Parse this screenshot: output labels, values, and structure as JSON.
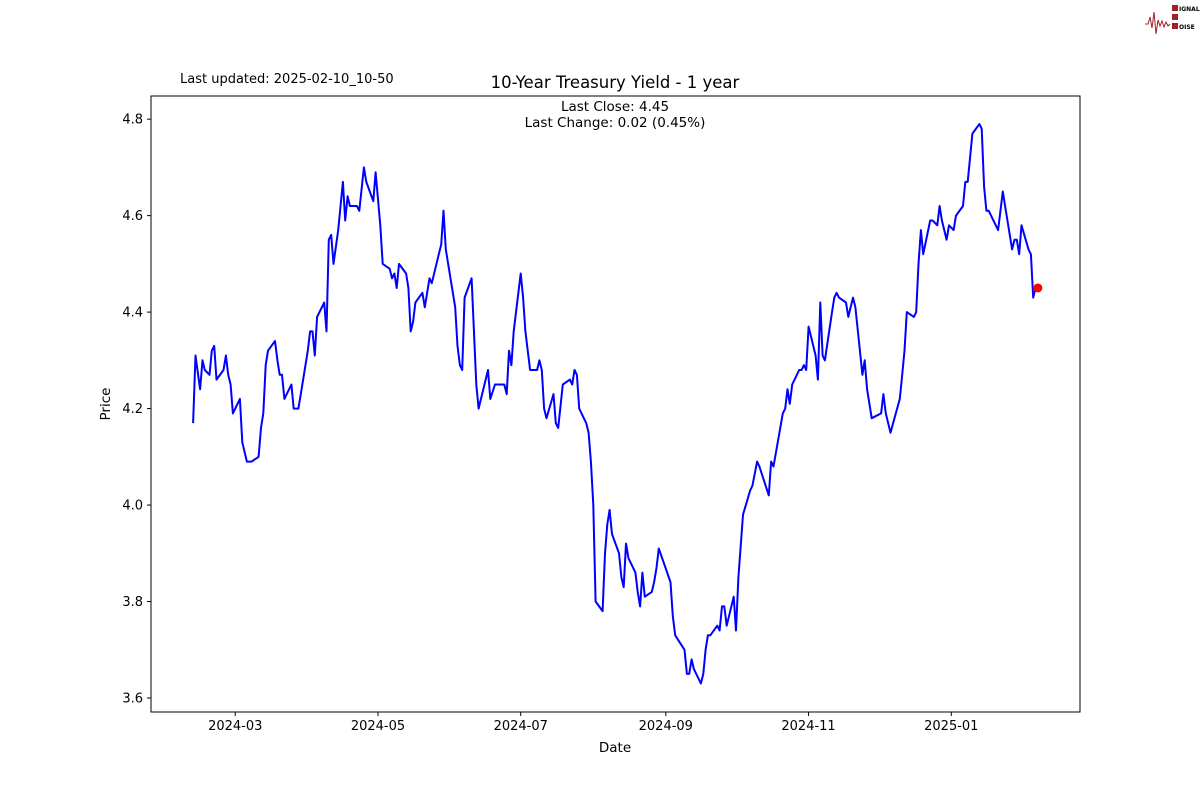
{
  "header": {
    "last_updated": "Last updated: 2025-02-10_10-50",
    "logo_text": [
      "SIGNAL",
      "2",
      "NOISE"
    ]
  },
  "chart_data": {
    "type": "line",
    "title": "10-Year Treasury Yield - 1 year",
    "annotations": [
      "Last Close: 4.45",
      "Last Change: 0.02 (0.45%)"
    ],
    "xlabel": "Date",
    "ylabel": "Price",
    "xlim": [
      "2024-01-25",
      "2025-02-25"
    ],
    "ylim": [
      3.571,
      4.848
    ],
    "x_ticks": [
      {
        "date": "2024-03-01",
        "label": "2024-03"
      },
      {
        "date": "2024-05-01",
        "label": "2024-05"
      },
      {
        "date": "2024-07-01",
        "label": "2024-07"
      },
      {
        "date": "2024-09-01",
        "label": "2024-09"
      },
      {
        "date": "2024-11-01",
        "label": "2024-11"
      },
      {
        "date": "2025-01-01",
        "label": "2025-01"
      }
    ],
    "y_ticks": [
      {
        "value": 3.6,
        "label": "3.6"
      },
      {
        "value": 3.8,
        "label": "3.8"
      },
      {
        "value": 4.0,
        "label": "4.0"
      },
      {
        "value": 4.2,
        "label": "4.2"
      },
      {
        "value": 4.4,
        "label": "4.4"
      },
      {
        "value": 4.6,
        "label": "4.6"
      },
      {
        "value": 4.8,
        "label": "4.8"
      }
    ],
    "grid": false,
    "line_color": "#0000ff",
    "last_point_color": "#ff0000",
    "last_point": {
      "date": "2025-02-07",
      "value": 4.45
    },
    "series": [
      {
        "points": [
          [
            "2024-02-12",
            4.17
          ],
          [
            "2024-02-13",
            4.31
          ],
          [
            "2024-02-15",
            4.24
          ],
          [
            "2024-02-16",
            4.3
          ],
          [
            "2024-02-17",
            4.28
          ],
          [
            "2024-02-19",
            4.27
          ],
          [
            "2024-02-20",
            4.32
          ],
          [
            "2024-02-21",
            4.33
          ],
          [
            "2024-02-22",
            4.26
          ],
          [
            "2024-02-25",
            4.28
          ],
          [
            "2024-02-26",
            4.31
          ],
          [
            "2024-02-27",
            4.27
          ],
          [
            "2024-02-28",
            4.25
          ],
          [
            "2024-02-29",
            4.19
          ],
          [
            "2024-03-03",
            4.22
          ],
          [
            "2024-03-04",
            4.13
          ],
          [
            "2024-03-06",
            4.09
          ],
          [
            "2024-03-08",
            4.09
          ],
          [
            "2024-03-11",
            4.1
          ],
          [
            "2024-03-12",
            4.16
          ],
          [
            "2024-03-13",
            4.19
          ],
          [
            "2024-03-14",
            4.29
          ],
          [
            "2024-03-15",
            4.32
          ],
          [
            "2024-03-18",
            4.34
          ],
          [
            "2024-03-19",
            4.3
          ],
          [
            "2024-03-20",
            4.27
          ],
          [
            "2024-03-21",
            4.27
          ],
          [
            "2024-03-22",
            4.22
          ],
          [
            "2024-03-25",
            4.25
          ],
          [
            "2024-03-26",
            4.2
          ],
          [
            "2024-03-28",
            4.2
          ],
          [
            "2024-03-29",
            4.23
          ],
          [
            "2024-04-01",
            4.32
          ],
          [
            "2024-04-02",
            4.36
          ],
          [
            "2024-04-03",
            4.36
          ],
          [
            "2024-04-04",
            4.31
          ],
          [
            "2024-04-05",
            4.39
          ],
          [
            "2024-04-08",
            4.42
          ],
          [
            "2024-04-09",
            4.36
          ],
          [
            "2024-04-10",
            4.55
          ],
          [
            "2024-04-11",
            4.56
          ],
          [
            "2024-04-12",
            4.5
          ],
          [
            "2024-04-14",
            4.57
          ],
          [
            "2024-04-16",
            4.67
          ],
          [
            "2024-04-17",
            4.59
          ],
          [
            "2024-04-18",
            4.64
          ],
          [
            "2024-04-19",
            4.62
          ],
          [
            "2024-04-22",
            4.62
          ],
          [
            "2024-04-23",
            4.61
          ],
          [
            "2024-04-25",
            4.7
          ],
          [
            "2024-04-26",
            4.67
          ],
          [
            "2024-04-29",
            4.63
          ],
          [
            "2024-04-30",
            4.69
          ],
          [
            "2024-05-02",
            4.58
          ],
          [
            "2024-05-03",
            4.5
          ],
          [
            "2024-05-06",
            4.49
          ],
          [
            "2024-05-07",
            4.47
          ],
          [
            "2024-05-08",
            4.48
          ],
          [
            "2024-05-09",
            4.45
          ],
          [
            "2024-05-10",
            4.5
          ],
          [
            "2024-05-13",
            4.48
          ],
          [
            "2024-05-14",
            4.45
          ],
          [
            "2024-05-15",
            4.36
          ],
          [
            "2024-05-16",
            4.38
          ],
          [
            "2024-05-17",
            4.42
          ],
          [
            "2024-05-20",
            4.44
          ],
          [
            "2024-05-21",
            4.41
          ],
          [
            "2024-05-23",
            4.47
          ],
          [
            "2024-05-24",
            4.46
          ],
          [
            "2024-05-27",
            4.52
          ],
          [
            "2024-05-28",
            4.54
          ],
          [
            "2024-05-29",
            4.61
          ],
          [
            "2024-05-30",
            4.53
          ],
          [
            "2024-06-03",
            4.41
          ],
          [
            "2024-06-04",
            4.33
          ],
          [
            "2024-06-05",
            4.29
          ],
          [
            "2024-06-06",
            4.28
          ],
          [
            "2024-06-07",
            4.43
          ],
          [
            "2024-06-10",
            4.47
          ],
          [
            "2024-06-12",
            4.25
          ],
          [
            "2024-06-13",
            4.2
          ],
          [
            "2024-06-17",
            4.28
          ],
          [
            "2024-06-18",
            4.22
          ],
          [
            "2024-06-20",
            4.25
          ],
          [
            "2024-06-24",
            4.25
          ],
          [
            "2024-06-25",
            4.23
          ],
          [
            "2024-06-26",
            4.32
          ],
          [
            "2024-06-27",
            4.29
          ],
          [
            "2024-06-28",
            4.36
          ],
          [
            "2024-07-01",
            4.48
          ],
          [
            "2024-07-02",
            4.43
          ],
          [
            "2024-07-03",
            4.36
          ],
          [
            "2024-07-05",
            4.28
          ],
          [
            "2024-07-08",
            4.28
          ],
          [
            "2024-07-09",
            4.3
          ],
          [
            "2024-07-10",
            4.28
          ],
          [
            "2024-07-11",
            4.2
          ],
          [
            "2024-07-12",
            4.18
          ],
          [
            "2024-07-15",
            4.23
          ],
          [
            "2024-07-16",
            4.17
          ],
          [
            "2024-07-17",
            4.16
          ],
          [
            "2024-07-19",
            4.25
          ],
          [
            "2024-07-22",
            4.26
          ],
          [
            "2024-07-23",
            4.25
          ],
          [
            "2024-07-24",
            4.28
          ],
          [
            "2024-07-25",
            4.27
          ],
          [
            "2024-07-26",
            4.2
          ],
          [
            "2024-07-29",
            4.17
          ],
          [
            "2024-07-30",
            4.15
          ],
          [
            "2024-07-31",
            4.09
          ],
          [
            "2024-08-01",
            4.0
          ],
          [
            "2024-08-02",
            3.8
          ],
          [
            "2024-08-05",
            3.78
          ],
          [
            "2024-08-06",
            3.9
          ],
          [
            "2024-08-07",
            3.96
          ],
          [
            "2024-08-08",
            3.99
          ],
          [
            "2024-08-09",
            3.94
          ],
          [
            "2024-08-12",
            3.9
          ],
          [
            "2024-08-13",
            3.85
          ],
          [
            "2024-08-14",
            3.83
          ],
          [
            "2024-08-15",
            3.92
          ],
          [
            "2024-08-16",
            3.89
          ],
          [
            "2024-08-19",
            3.86
          ],
          [
            "2024-08-20",
            3.82
          ],
          [
            "2024-08-21",
            3.79
          ],
          [
            "2024-08-22",
            3.86
          ],
          [
            "2024-08-23",
            3.81
          ],
          [
            "2024-08-26",
            3.82
          ],
          [
            "2024-08-27",
            3.84
          ],
          [
            "2024-08-28",
            3.87
          ],
          [
            "2024-08-29",
            3.91
          ],
          [
            "2024-09-03",
            3.84
          ],
          [
            "2024-09-04",
            3.77
          ],
          [
            "2024-09-05",
            3.73
          ],
          [
            "2024-09-09",
            3.7
          ],
          [
            "2024-09-10",
            3.65
          ],
          [
            "2024-09-11",
            3.65
          ],
          [
            "2024-09-12",
            3.68
          ],
          [
            "2024-09-13",
            3.66
          ],
          [
            "2024-09-16",
            3.63
          ],
          [
            "2024-09-17",
            3.65
          ],
          [
            "2024-09-18",
            3.7
          ],
          [
            "2024-09-19",
            3.73
          ],
          [
            "2024-09-20",
            3.73
          ],
          [
            "2024-09-23",
            3.75
          ],
          [
            "2024-09-24",
            3.74
          ],
          [
            "2024-09-25",
            3.79
          ],
          [
            "2024-09-26",
            3.79
          ],
          [
            "2024-09-27",
            3.75
          ],
          [
            "2024-09-30",
            3.81
          ],
          [
            "2024-10-01",
            3.74
          ],
          [
            "2024-10-02",
            3.85
          ],
          [
            "2024-10-04",
            3.98
          ],
          [
            "2024-10-07",
            4.03
          ],
          [
            "2024-10-08",
            4.04
          ],
          [
            "2024-10-10",
            4.09
          ],
          [
            "2024-10-11",
            4.08
          ],
          [
            "2024-10-15",
            4.02
          ],
          [
            "2024-10-16",
            4.09
          ],
          [
            "2024-10-17",
            4.08
          ],
          [
            "2024-10-21",
            4.19
          ],
          [
            "2024-10-22",
            4.2
          ],
          [
            "2024-10-23",
            4.24
          ],
          [
            "2024-10-24",
            4.21
          ],
          [
            "2024-10-25",
            4.25
          ],
          [
            "2024-10-28",
            4.28
          ],
          [
            "2024-10-29",
            4.28
          ],
          [
            "2024-10-30",
            4.29
          ],
          [
            "2024-10-31",
            4.28
          ],
          [
            "2024-11-01",
            4.37
          ],
          [
            "2024-11-04",
            4.31
          ],
          [
            "2024-11-05",
            4.26
          ],
          [
            "2024-11-06",
            4.42
          ],
          [
            "2024-11-07",
            4.31
          ],
          [
            "2024-11-08",
            4.3
          ],
          [
            "2024-11-11",
            4.4
          ],
          [
            "2024-11-12",
            4.43
          ],
          [
            "2024-11-13",
            4.44
          ],
          [
            "2024-11-14",
            4.43
          ],
          [
            "2024-11-17",
            4.42
          ],
          [
            "2024-11-18",
            4.39
          ],
          [
            "2024-11-20",
            4.43
          ],
          [
            "2024-11-21",
            4.41
          ],
          [
            "2024-11-24",
            4.27
          ],
          [
            "2024-11-25",
            4.3
          ],
          [
            "2024-11-26",
            4.24
          ],
          [
            "2024-11-28",
            4.18
          ],
          [
            "2024-12-02",
            4.19
          ],
          [
            "2024-12-03",
            4.23
          ],
          [
            "2024-12-04",
            4.19
          ],
          [
            "2024-12-06",
            4.15
          ],
          [
            "2024-12-10",
            4.22
          ],
          [
            "2024-12-11",
            4.27
          ],
          [
            "2024-12-12",
            4.32
          ],
          [
            "2024-12-13",
            4.4
          ],
          [
            "2024-12-16",
            4.39
          ],
          [
            "2024-12-17",
            4.4
          ],
          [
            "2024-12-18",
            4.5
          ],
          [
            "2024-12-19",
            4.57
          ],
          [
            "2024-12-20",
            4.52
          ],
          [
            "2024-12-23",
            4.59
          ],
          [
            "2024-12-24",
            4.59
          ],
          [
            "2024-12-26",
            4.58
          ],
          [
            "2024-12-27",
            4.62
          ],
          [
            "2024-12-28",
            4.59
          ],
          [
            "2024-12-30",
            4.55
          ],
          [
            "2024-12-31",
            4.58
          ],
          [
            "2025-01-02",
            4.57
          ],
          [
            "2025-01-03",
            4.6
          ],
          [
            "2025-01-06",
            4.62
          ],
          [
            "2025-01-07",
            4.67
          ],
          [
            "2025-01-08",
            4.67
          ],
          [
            "2025-01-10",
            4.77
          ],
          [
            "2025-01-13",
            4.79
          ],
          [
            "2025-01-14",
            4.78
          ],
          [
            "2025-01-15",
            4.66
          ],
          [
            "2025-01-16",
            4.61
          ],
          [
            "2025-01-17",
            4.61
          ],
          [
            "2025-01-21",
            4.57
          ],
          [
            "2025-01-23",
            4.65
          ],
          [
            "2025-01-24",
            4.62
          ],
          [
            "2025-01-27",
            4.53
          ],
          [
            "2025-01-28",
            4.55
          ],
          [
            "2025-01-29",
            4.55
          ],
          [
            "2025-01-30",
            4.52
          ],
          [
            "2025-01-31",
            4.58
          ],
          [
            "2025-02-03",
            4.53
          ],
          [
            "2025-02-04",
            4.52
          ],
          [
            "2025-02-05",
            4.43
          ],
          [
            "2025-02-06",
            4.45
          ]
        ]
      }
    ]
  }
}
